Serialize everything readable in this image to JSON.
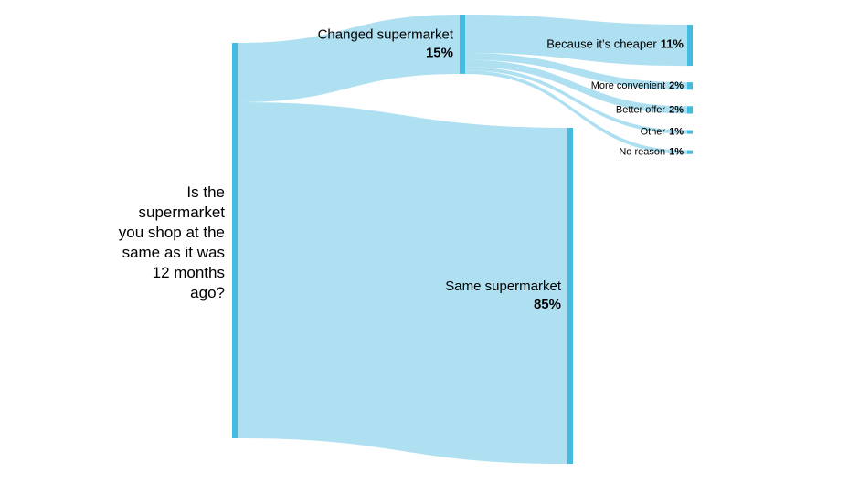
{
  "chart_data": {
    "type": "sankey",
    "source": "Is the supermarket you shop at the same as it was 12 months ago?",
    "categories": [
      "Changed supermarket",
      "Same supermarket"
    ],
    "values": [
      15,
      85
    ],
    "value_labels": [
      "15%",
      "85%"
    ],
    "reasons": {
      "categories": [
        "Because it’s cheaper",
        "More convenient",
        "Better offer",
        "Other",
        "No reason"
      ],
      "values": [
        11,
        2,
        2,
        1,
        1
      ],
      "value_labels": [
        "11%",
        "2%",
        "2%",
        "1%",
        "1%"
      ]
    },
    "node_color": "#45bbe0",
    "flow_color": "#aee0f1"
  }
}
